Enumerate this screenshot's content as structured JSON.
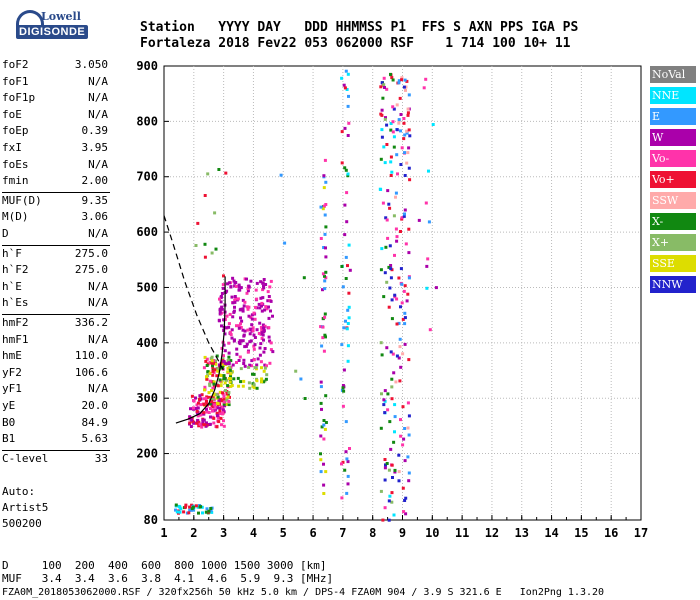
{
  "logo": {
    "line1": "Lowell",
    "line2": "DIGISONDE"
  },
  "header": {
    "row1": "Station   YYYY DAY   DDD HHMMSS P1  FFS S AXN PPS IGA PS",
    "row2": "Fortaleza 2018 Fev22 053 062000 RSF    1 714 100 10+ 11"
  },
  "params": {
    "group1": [
      {
        "k": "foF2",
        "v": "3.050"
      },
      {
        "k": "foF1",
        "v": "N/A"
      },
      {
        "k": "foF1p",
        "v": "N/A"
      },
      {
        "k": "foE",
        "v": "N/A"
      },
      {
        "k": "foEp",
        "v": "0.39"
      },
      {
        "k": "fxI",
        "v": "3.95"
      },
      {
        "k": "foEs",
        "v": "N/A"
      },
      {
        "k": "fmin",
        "v": "2.00"
      }
    ],
    "group2": [
      {
        "k": "MUF(D)",
        "v": "9.35"
      },
      {
        "k": "M(D)",
        "v": "3.06"
      },
      {
        "k": "D",
        "v": "N/A"
      }
    ],
    "group3": [
      {
        "k": "h`F",
        "v": "275.0"
      },
      {
        "k": "h`F2",
        "v": "275.0"
      },
      {
        "k": "h`E",
        "v": "N/A"
      },
      {
        "k": "h`Es",
        "v": "N/A"
      }
    ],
    "group4": [
      {
        "k": "hmF2",
        "v": "336.2"
      },
      {
        "k": "hmF1",
        "v": "N/A"
      },
      {
        "k": "hmE",
        "v": "110.0"
      },
      {
        "k": "yF2",
        "v": "106.6"
      },
      {
        "k": "yF1",
        "v": "N/A"
      },
      {
        "k": "yE",
        "v": "20.0"
      },
      {
        "k": "B0",
        "v": "84.9"
      },
      {
        "k": "B1",
        "v": "5.63"
      }
    ],
    "group5": [
      {
        "k": "C-level",
        "v": "33"
      }
    ]
  },
  "auto": {
    "l1": "Auto:",
    "l2": "Artist5",
    "l3": "500200"
  },
  "footer": {
    "row1": "D     100  200  400  600  800 1000 1500 3000 [km]",
    "row2": "MUF   3.4  3.4  3.6  3.8  4.1  4.6  5.9  9.3 [MHz]",
    "fname": "FZA0M_2018053062000.RSF / 320fx256h 50 kHz 5.0 km / DPS-4 FZA0M 904 / 3.9 S 321.6 E   Ion2Png 1.3.20"
  },
  "legend": [
    {
      "label": "NoVal",
      "color": "#808080"
    },
    {
      "label": "NNE",
      "color": "#00e5ff"
    },
    {
      "label": "E",
      "color": "#3399ff"
    },
    {
      "label": "W",
      "color": "#aa00aa"
    },
    {
      "label": "Vo-",
      "color": "#ff33aa"
    },
    {
      "label": "Vo+",
      "color": "#ee1133"
    },
    {
      "label": "SSW",
      "color": "#ffaaaa"
    },
    {
      "label": "X-",
      "color": "#118811"
    },
    {
      "label": "X+",
      "color": "#88bb66"
    },
    {
      "label": "SSE",
      "color": "#dddd00"
    },
    {
      "label": "NNW",
      "color": "#2222cc"
    }
  ],
  "chart_data": {
    "type": "scatter",
    "xlim": [
      1,
      17
    ],
    "ylim": [
      80,
      900
    ],
    "x_ticks": [
      "1",
      "2",
      "3",
      "4",
      "5",
      "6",
      "7",
      "8",
      "9",
      "10",
      "11",
      "12",
      "13",
      "14",
      "15",
      "16",
      "17"
    ],
    "y_ticks": [
      "80",
      "200",
      "300",
      "400",
      "500",
      "600",
      "700",
      "800",
      "900"
    ],
    "grid": true,
    "clusters": [
      {
        "xr": [
          1.8,
          3.0
        ],
        "yr": [
          250,
          310
        ],
        "n": 140,
        "colors": [
          "#ee1133",
          "#ff33aa",
          "#aa00aa"
        ]
      },
      {
        "xr": [
          2.3,
          3.2
        ],
        "yr": [
          290,
          380
        ],
        "n": 130,
        "colors": [
          "#ee1133",
          "#ff33aa",
          "#dddd00",
          "#88bb66",
          "#118811"
        ]
      },
      {
        "xr": [
          2.8,
          4.6
        ],
        "yr": [
          360,
          520
        ],
        "n": 230,
        "colors": [
          "#aa00aa",
          "#ff33aa",
          "#aa00aa"
        ]
      },
      {
        "xr": [
          3.0,
          4.4
        ],
        "yr": [
          320,
          360
        ],
        "n": 45,
        "colors": [
          "#dddd00",
          "#88bb66",
          "#118811"
        ]
      },
      {
        "xr": [
          1.3,
          2.6
        ],
        "yr": [
          95,
          110
        ],
        "n": 45,
        "colors": [
          "#3399ff",
          "#00e5ff",
          "#118811",
          "#ee1133"
        ]
      },
      {
        "xr": [
          2.0,
          3.1
        ],
        "yr": [
          520,
          720
        ],
        "n": 12,
        "colors": [
          "#ee1133",
          "#88bb66",
          "#118811"
        ]
      },
      {
        "xr": [
          6.2,
          6.4
        ],
        "yr": [
          120,
          740
        ],
        "n": 55,
        "colors": [
          "#aa00aa",
          "#ff33aa",
          "#118811",
          "#dddd00",
          "#3399ff"
        ]
      },
      {
        "xr": [
          6.9,
          7.2
        ],
        "yr": [
          120,
          900
        ],
        "n": 60,
        "colors": [
          "#aa00aa",
          "#ff33aa",
          "#ee1133",
          "#3399ff",
          "#00e5ff",
          "#118811"
        ]
      },
      {
        "xr": [
          8.2,
          8.7
        ],
        "yr": [
          80,
          900
        ],
        "n": 110,
        "colors": [
          "#ee1133",
          "#aa00aa",
          "#ff33aa",
          "#118811",
          "#88bb66",
          "#00e5ff",
          "#2222cc"
        ]
      },
      {
        "xr": [
          8.7,
          9.2
        ],
        "yr": [
          80,
          900
        ],
        "n": 110,
        "colors": [
          "#ee1133",
          "#ff33aa",
          "#aa00aa",
          "#3399ff",
          "#2222cc",
          "#ffaaaa"
        ]
      },
      {
        "xr": [
          9.5,
          10.1
        ],
        "yr": [
          420,
          900
        ],
        "n": 12,
        "colors": [
          "#ff33aa",
          "#aa00aa",
          "#00e5ff",
          "#3399ff"
        ]
      },
      {
        "xr": [
          4.8,
          6.0
        ],
        "yr": [
          300,
          860
        ],
        "n": 6,
        "colors": [
          "#3399ff",
          "#118811",
          "#88bb66"
        ]
      }
    ],
    "trace_solid": [
      [
        1.4,
        255
      ],
      [
        1.8,
        262
      ],
      [
        2.2,
        272
      ],
      [
        2.5,
        290
      ],
      [
        2.7,
        315
      ],
      [
        2.85,
        345
      ],
      [
        2.95,
        380
      ],
      [
        3.02,
        420
      ],
      [
        3.05,
        470
      ],
      [
        3.05,
        520
      ]
    ],
    "trace_dashed": [
      [
        1.0,
        630
      ],
      [
        1.3,
        580
      ],
      [
        1.7,
        510
      ],
      [
        2.1,
        450
      ],
      [
        2.5,
        400
      ],
      [
        2.8,
        370
      ],
      [
        3.05,
        345
      ]
    ]
  }
}
